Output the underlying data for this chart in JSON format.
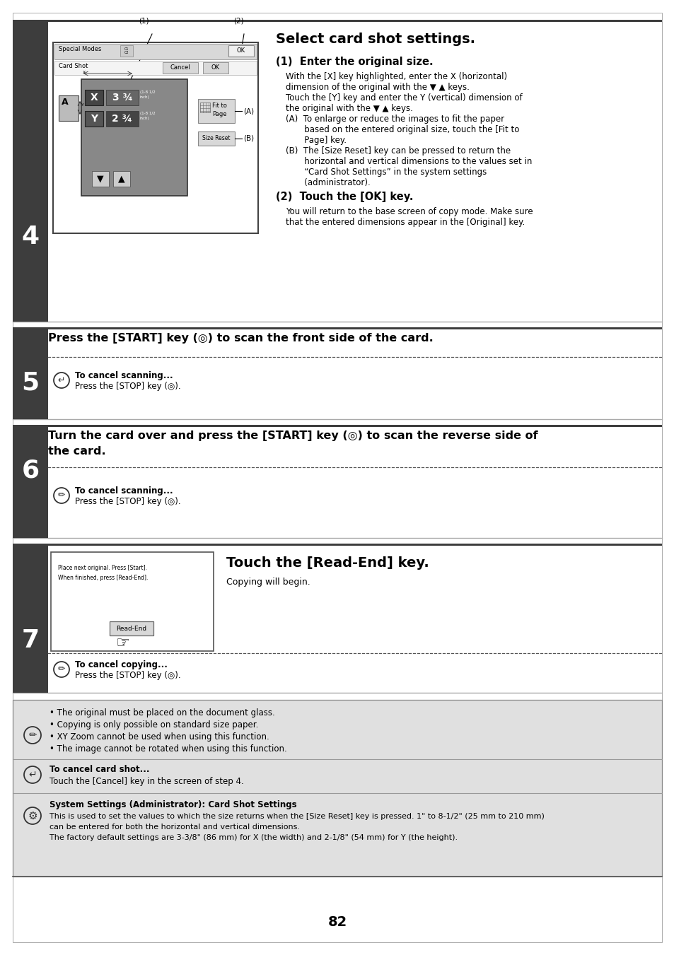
{
  "page_number": "82",
  "bg_color": "#ffffff",
  "dark_col": "#3d3d3d",
  "step4": {
    "step_num": "4",
    "title": "Select card shot settings.",
    "sec1_head": "(1)  Enter the original size.",
    "sec1_body": [
      "With the [X] key highlighted, enter the X (horizontal)",
      "dimension of the original with the ▼ ▲ keys.",
      "Touch the [Y] key and enter the Y (vertical) dimension of",
      "the original with the ▼ ▲ keys.",
      "(A)  To enlarge or reduce the images to fit the paper",
      "       based on the entered original size, touch the [Fit to",
      "       Page] key.",
      "(B)  The [Size Reset] key can be pressed to return the",
      "       horizontal and vertical dimensions to the values set in",
      "       “Card Shot Settings” in the system settings",
      "       (administrator)."
    ],
    "sec2_head": "(2)  Touch the [OK] key.",
    "sec2_body": [
      "You will return to the base screen of copy mode. Make sure",
      "that the entered dimensions appear in the [Original] key."
    ]
  },
  "step5": {
    "step_num": "5",
    "title": "Press the [START] key (◎) to scan the front side of the card.",
    "cancel_title": "To cancel scanning...",
    "cancel_body": "Press the [STOP] key (◎)."
  },
  "step6": {
    "step_num": "6",
    "title_line1": "Turn the card over and press the [START] key (◎) to scan the reverse side of",
    "title_line2": "the card.",
    "cancel_title": "To cancel scanning...",
    "cancel_body": "Press the [STOP] key (◎)."
  },
  "step7": {
    "step_num": "7",
    "title": "Touch the [Read-End] key.",
    "body": "Copying will begin.",
    "cancel_title": "To cancel copying...",
    "cancel_body": "Press the [STOP] key (◎)."
  },
  "notes": {
    "note_items": [
      "• The original must be placed on the document glass.",
      "• Copying is only possible on standard size paper.",
      "• XY Zoom cannot be used when using this function.",
      "• The image cannot be rotated when using this function."
    ],
    "cancel_card_title": "To cancel card shot...",
    "cancel_card_body": "Touch the [Cancel] key in the screen of step 4.",
    "sys_title": "System Settings (Administrator): Card Shot Settings",
    "sys_body": [
      "This is used to set the values to which the size returns when the [Size Reset] key is pressed. 1\" to 8-1/2\" (25 mm to 210 mm)",
      "can be entered for both the horizontal and vertical dimensions.",
      "The factory default settings are 3-3/8\" (86 mm) for X (the width) and 2-1/8\" (54 mm) for Y (the height)."
    ]
  }
}
